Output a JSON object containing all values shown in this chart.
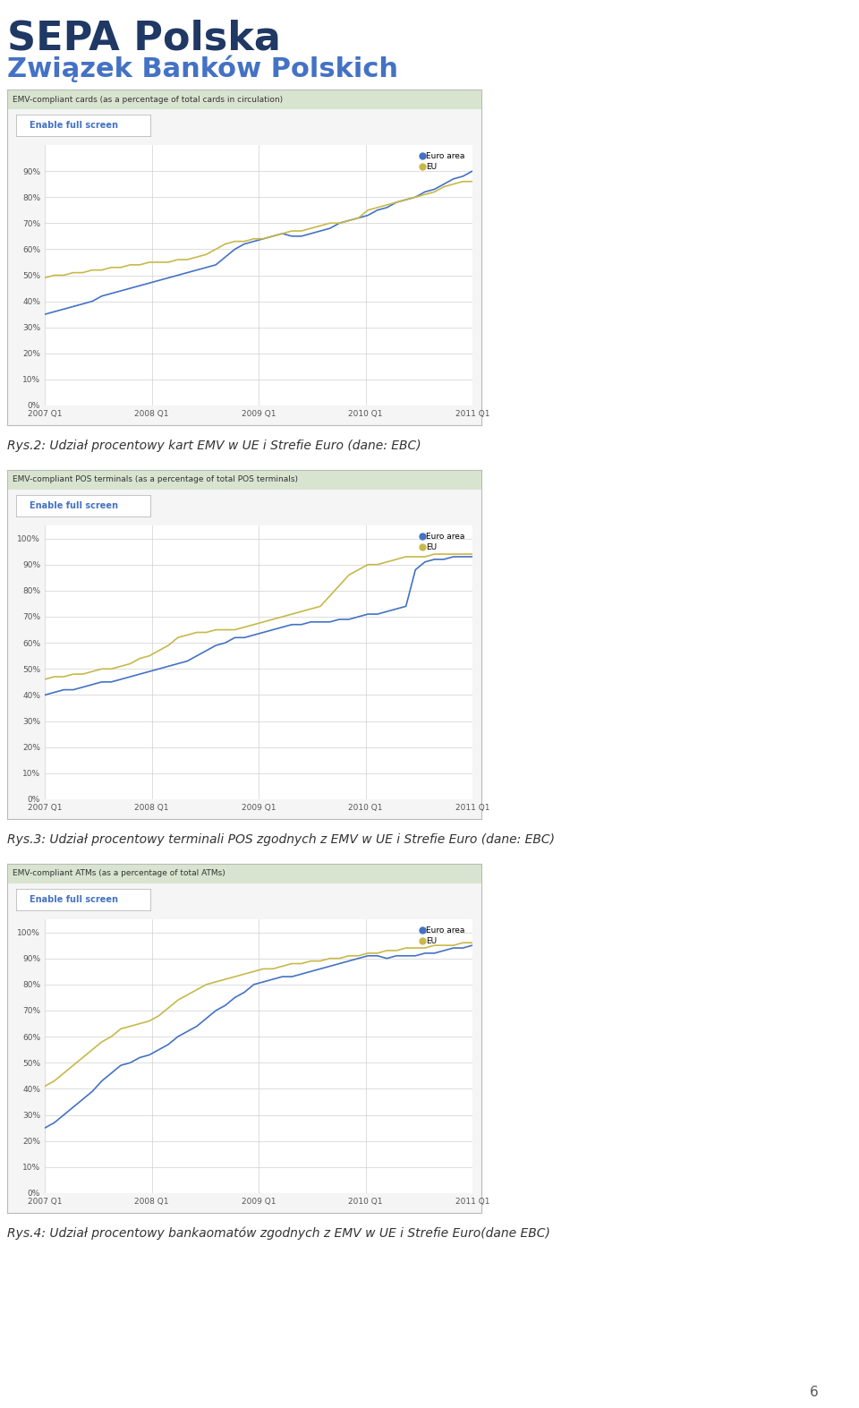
{
  "title1": "SEPA Polska",
  "title2": "Związek Banków Polskich",
  "chart1_header": "EMV-compliant cards (as a percentage of total cards in circulation)",
  "chart2_header": "EMV-compliant POS terminals (as a percentage of total POS terminals)",
  "chart3_header": "EMV-compliant ATMs (as a percentage of total ATMs)",
  "enable_full_screen": "Enable full screen",
  "caption1": "Rys.2: Udział procentowy kart EMV w UE i Strefie Euro (dane: EBC)",
  "caption2": "Rys.3: Udział procentowy terminali POS zgodnych z EMV w UE i Strefie Euro (dane: EBC)",
  "caption3": "Rys.4: Udział procentowy bankaomatów zgodnych z EMV w UE i Strefie Euro(dane EBC)",
  "page_number": "6",
  "x_ticks": [
    "2007 Q1",
    "2008 Q1",
    "2009 Q1",
    "2010 Q1",
    "2011 Q1"
  ],
  "legend_euro_area": "Euro area",
  "legend_eu": "EU",
  "euro_area_color": "#4472c4",
  "eu_color": "#c8b84a",
  "header_bg": "#d9e4d0",
  "button_bg": "#ffffff",
  "button_text_color": "#4472c4",
  "grid_color": "#d0d0d0",
  "box_bg": "#f5f5f5",
  "chart1_euro_area": [
    35,
    36,
    37,
    38,
    39,
    40,
    42,
    43,
    44,
    45,
    46,
    47,
    48,
    49,
    50,
    51,
    52,
    53,
    54,
    57,
    60,
    62,
    63,
    64,
    65,
    66,
    65,
    65,
    66,
    67,
    68,
    70,
    71,
    72,
    73,
    75,
    76,
    78,
    79,
    80,
    82,
    83,
    85,
    87,
    88,
    90
  ],
  "chart1_eu": [
    49,
    50,
    50,
    51,
    51,
    52,
    52,
    53,
    53,
    54,
    54,
    55,
    55,
    55,
    56,
    56,
    57,
    58,
    60,
    62,
    63,
    63,
    64,
    64,
    65,
    66,
    67,
    67,
    68,
    69,
    70,
    70,
    71,
    72,
    75,
    76,
    77,
    78,
    79,
    80,
    81,
    82,
    84,
    85,
    86,
    86
  ],
  "chart2_euro_area": [
    40,
    41,
    42,
    42,
    43,
    44,
    45,
    45,
    46,
    47,
    48,
    49,
    50,
    51,
    52,
    53,
    55,
    57,
    59,
    60,
    62,
    62,
    63,
    64,
    65,
    66,
    67,
    67,
    68,
    68,
    68,
    69,
    69,
    70,
    71,
    71,
    72,
    73,
    74,
    88,
    91,
    92,
    92,
    93,
    93,
    93
  ],
  "chart2_eu": [
    46,
    47,
    47,
    48,
    48,
    49,
    50,
    50,
    51,
    52,
    54,
    55,
    57,
    59,
    62,
    63,
    64,
    64,
    65,
    65,
    65,
    66,
    67,
    68,
    69,
    70,
    71,
    72,
    73,
    74,
    78,
    82,
    86,
    88,
    90,
    90,
    91,
    92,
    93,
    93,
    93,
    94,
    94,
    94,
    94,
    94
  ],
  "chart3_euro_area": [
    25,
    27,
    30,
    33,
    36,
    39,
    43,
    46,
    49,
    50,
    52,
    53,
    55,
    57,
    60,
    62,
    64,
    67,
    70,
    72,
    75,
    77,
    80,
    81,
    82,
    83,
    83,
    84,
    85,
    86,
    87,
    88,
    89,
    90,
    91,
    91,
    90,
    91,
    91,
    91,
    92,
    92,
    93,
    94,
    94,
    95
  ],
  "chart3_eu": [
    41,
    43,
    46,
    49,
    52,
    55,
    58,
    60,
    63,
    64,
    65,
    66,
    68,
    71,
    74,
    76,
    78,
    80,
    81,
    82,
    83,
    84,
    85,
    86,
    86,
    87,
    88,
    88,
    89,
    89,
    90,
    90,
    91,
    91,
    92,
    92,
    93,
    93,
    94,
    94,
    94,
    95,
    95,
    95,
    96,
    96
  ]
}
